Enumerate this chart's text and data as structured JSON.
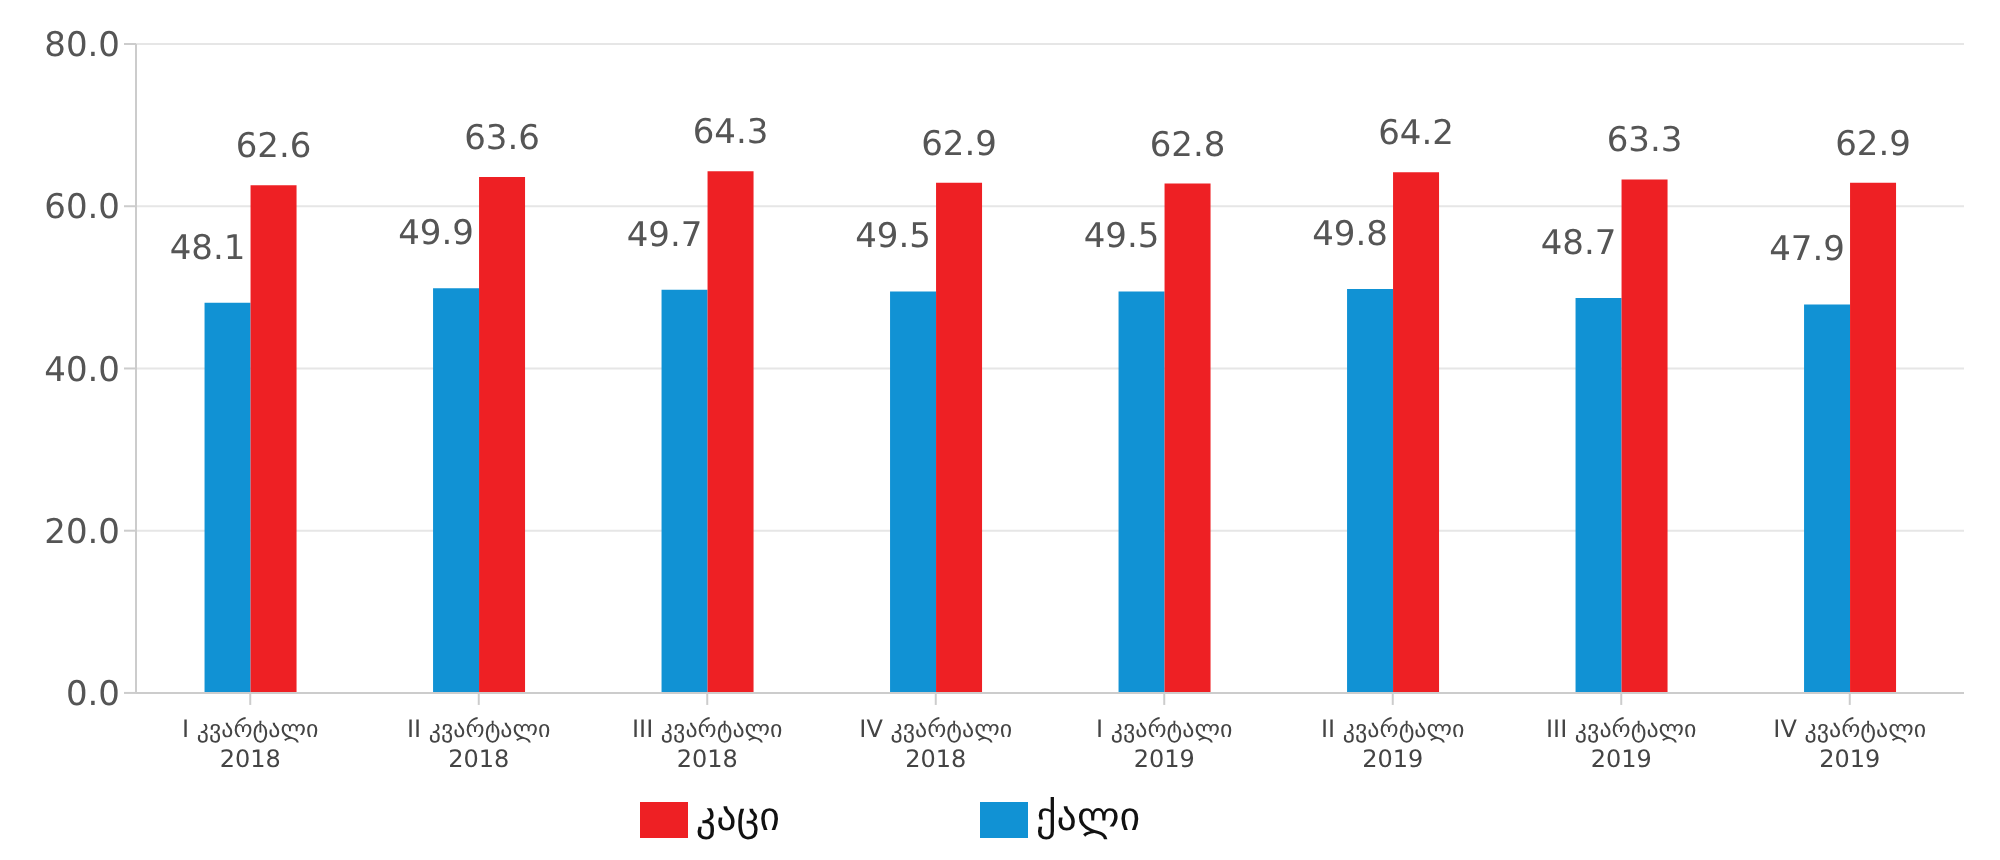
{
  "chart_data": {
    "type": "bar",
    "categories": [
      "I კვარტალი\n2018",
      "II კვარტალი\n2018",
      "III კვარტალი\n2018",
      "IV კვარტალი\n2018",
      "I კვარტალი\n2019",
      "II კვარტალი\n2019",
      "III კვარტალი\n2019",
      "IV კვარტალი\n2019"
    ],
    "series": [
      {
        "name": "ქალი",
        "color": "#1192d4",
        "values": [
          48.1,
          49.9,
          49.7,
          49.5,
          49.5,
          49.8,
          48.7,
          47.9
        ]
      },
      {
        "name": "კაცი",
        "color": "#ee2024",
        "values": [
          62.6,
          63.6,
          64.3,
          62.9,
          62.8,
          64.2,
          63.3,
          62.9
        ]
      }
    ],
    "ylim": [
      0,
      80
    ],
    "yticks": [
      {
        "value": 0,
        "label": "0.0"
      },
      {
        "value": 20,
        "label": "20.0"
      },
      {
        "value": 40,
        "label": "40.0"
      },
      {
        "value": 60,
        "label": "60.0"
      },
      {
        "value": 80,
        "label": "80.0"
      }
    ],
    "grid": "y",
    "legend": "bottom",
    "data_labels": true
  }
}
